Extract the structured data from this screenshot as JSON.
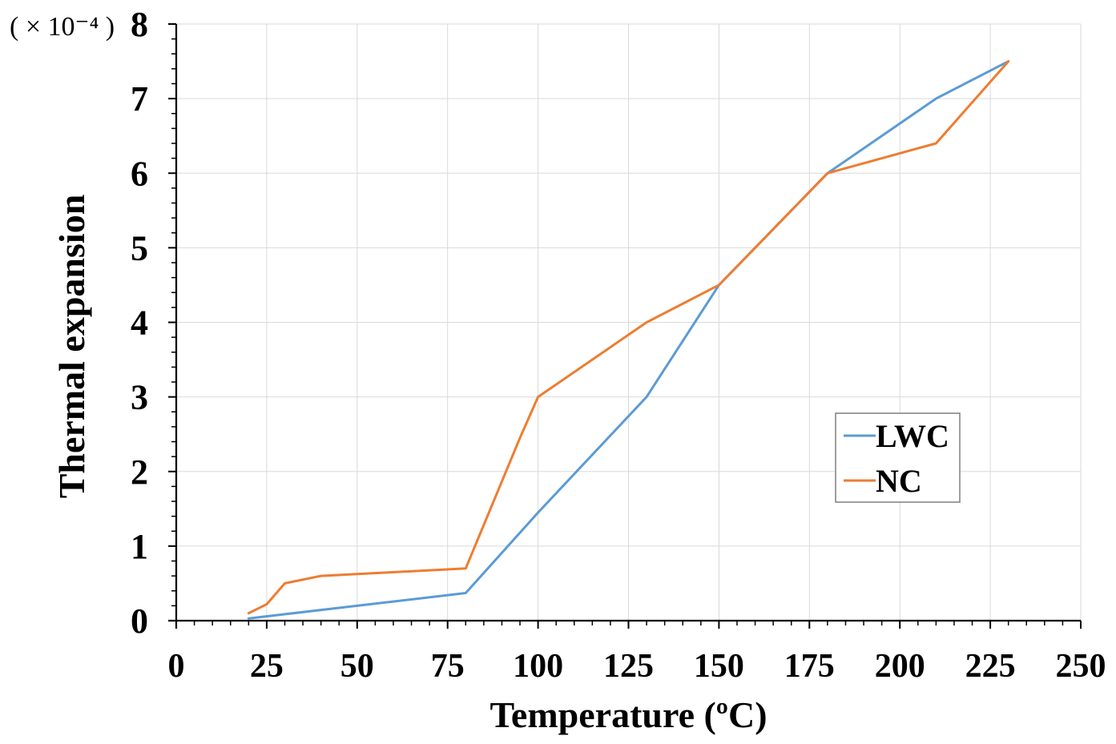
{
  "chart_data": {
    "type": "line",
    "title": "",
    "xlabel": "Temperature (ºC)",
    "ylabel": "Thermal expansion",
    "y_multiplier": "( × 10⁻⁴ )",
    "xlim": [
      0,
      250
    ],
    "ylim": [
      0,
      8
    ],
    "xticks": [
      "0",
      "25",
      "50",
      "75",
      "100",
      "125",
      "150",
      "175",
      "200",
      "225",
      "250"
    ],
    "xtick_values": [
      0,
      25,
      50,
      75,
      100,
      125,
      150,
      175,
      200,
      225,
      250
    ],
    "yticks": [
      "0",
      "1",
      "2",
      "3",
      "4",
      "5",
      "6",
      "7",
      "8"
    ],
    "ytick_values": [
      0,
      1,
      2,
      3,
      4,
      5,
      6,
      7,
      8
    ],
    "grid": true,
    "legend_position": "right",
    "series": [
      {
        "name": "LWC",
        "color": "#5b9bd5",
        "x": [
          20,
          80,
          100,
          130,
          150,
          180,
          210,
          230
        ],
        "y": [
          0.03,
          0.37,
          1.45,
          3.0,
          4.5,
          6.0,
          7.0,
          7.5
        ]
      },
      {
        "name": "NC",
        "color": "#ed7d31",
        "x": [
          20,
          25,
          30,
          40,
          80,
          95,
          100,
          130,
          150,
          180,
          210,
          230
        ],
        "y": [
          0.1,
          0.22,
          0.5,
          0.6,
          0.7,
          2.45,
          3.0,
          4.0,
          4.5,
          6.0,
          6.4,
          7.5
        ]
      }
    ]
  }
}
